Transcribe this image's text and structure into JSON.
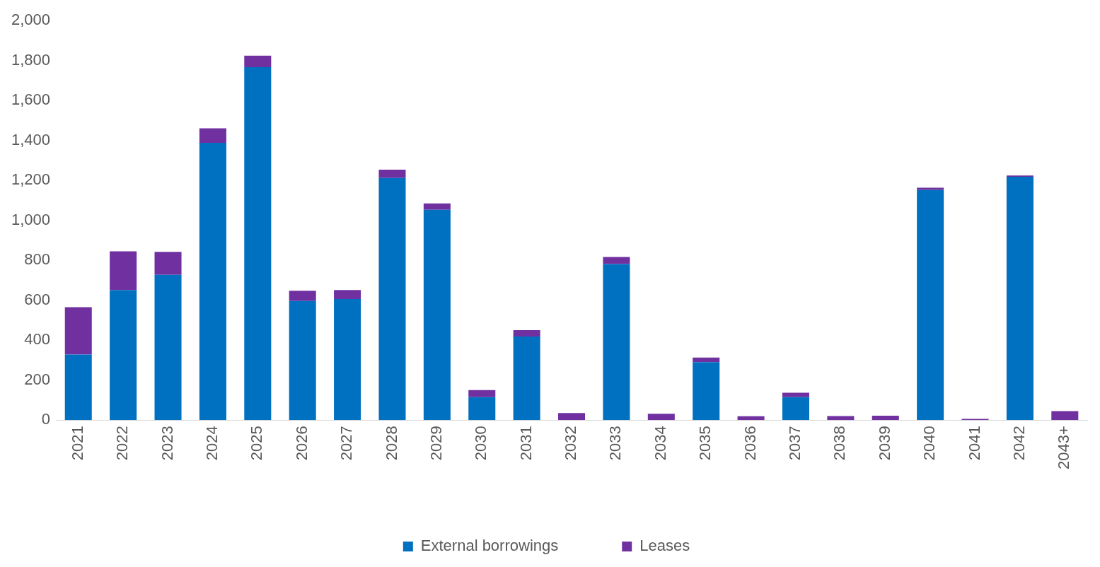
{
  "chart_data": {
    "type": "bar",
    "stacked": true,
    "categories": [
      "2021",
      "2022",
      "2023",
      "2024",
      "2025",
      "2026",
      "2027",
      "2028",
      "2029",
      "2030",
      "2031",
      "2032",
      "2033",
      "2034",
      "2035",
      "2036",
      "2037",
      "2038",
      "2039",
      "2040",
      "2041",
      "2042",
      "2043+"
    ],
    "series": [
      {
        "name": "External borrowings",
        "color": "#0070c0",
        "values": [
          328,
          651,
          727,
          1388,
          1767,
          596,
          606,
          1212,
          1053,
          115,
          418,
          0,
          781,
          0,
          290,
          0,
          115,
          0,
          0,
          1152,
          0,
          1218,
          0
        ]
      },
      {
        "name": "Leases",
        "color": "#7030a0",
        "values": [
          237,
          194,
          115,
          73,
          58,
          52,
          45,
          42,
          32,
          35,
          32,
          35,
          36,
          32,
          23,
          19,
          22,
          20,
          22,
          12,
          6,
          7,
          45
        ]
      }
    ],
    "ylim": [
      0,
      2000
    ],
    "yticks": [
      0,
      200,
      400,
      600,
      800,
      {
        "value": 1000,
        "label": "1,000"
      },
      {
        "value": 1200,
        "label": "1,200"
      },
      {
        "value": 1400,
        "label": "1,400"
      },
      {
        "value": 1600,
        "label": "1,600"
      },
      {
        "value": 1800,
        "label": "1,800"
      },
      {
        "value": 2000,
        "label": "2,000"
      }
    ],
    "grid": false,
    "legend": "bottom"
  }
}
